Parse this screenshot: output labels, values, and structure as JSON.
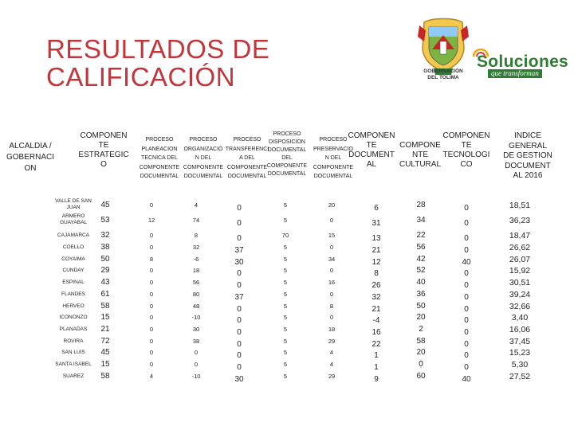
{
  "title_line1": "RESULTADOS DE",
  "title_line2": "CALIFICACIÓN",
  "logos": {
    "seal_caption_line1": "GOBERNACIÓN",
    "seal_caption_line2": "DEL TOLIMA",
    "brand_name": "Soluciones",
    "brand_tagline": "que transforman",
    "brand_color": "#2e7d32"
  },
  "headers": [
    {
      "lines": [
        "ALCALDIA /",
        "GOBERNACI",
        "ON"
      ]
    },
    {
      "lines": [
        "COMPONEN",
        "TE",
        "ESTRATEGIC",
        "O"
      ]
    },
    {
      "lines": [
        "PROCESO",
        "PLANEACION",
        "TECNICA DEL",
        "COMPONENTE",
        "DOCUMENTAL"
      ]
    },
    {
      "lines": [
        "PROCESO",
        "ORGANIZACIÓ",
        "N DEL",
        "COMPONENTE",
        "DOCUMENTAL"
      ]
    },
    {
      "lines": [
        "PROCESO",
        "TRANSFERENCI",
        "A DEL",
        "COMPONENTE",
        "DOCUMENTAL"
      ]
    },
    {
      "lines": [
        "PROCESO",
        "DISPOSICION",
        "DOCUMENTAL",
        "DEL",
        "COMPONENTE",
        "DOCUMENTAL"
      ]
    },
    {
      "lines": [
        "PROCESO",
        "PRESERVACIO",
        "N DEL",
        "COMPONENTE",
        "DOCUMENTAL"
      ]
    },
    {
      "lines": [
        "COMPONEN",
        "TE",
        "DOCUMENT",
        "AL"
      ]
    },
    {
      "lines": [
        "COMPONE",
        "NTE",
        "CULTURAL"
      ]
    },
    {
      "lines": [
        "COMPONEN",
        "TE",
        "TECNOLOGI",
        "CO"
      ]
    },
    {
      "lines": [
        "INDICE",
        "GENERAL",
        "DE GESTION",
        "DOCUMENT",
        "AL 2016"
      ]
    }
  ],
  "rows": [
    {
      "name": [
        "VALLE DE SAN",
        "JUAN"
      ],
      "values": [
        "45",
        "0",
        "4",
        "0",
        "5",
        "20",
        "6",
        "28",
        "0",
        "18,51"
      ]
    },
    {
      "name": [
        "ARMERO",
        "GUAYABAL"
      ],
      "values": [
        "53",
        "12",
        "74",
        "0",
        "5",
        "0",
        "31",
        "34",
        "0",
        "36,23"
      ]
    },
    {
      "name": [
        "CAJAMARCA"
      ],
      "values": [
        "32",
        "0",
        "8",
        "0",
        "70",
        "15",
        "13",
        "22",
        "0",
        "18,47"
      ]
    },
    {
      "name": [
        "COELLO"
      ],
      "values": [
        "38",
        "0",
        "32",
        "37",
        "5",
        "0",
        "21",
        "56",
        "0",
        "26,62"
      ]
    },
    {
      "name": [
        "COYAIMA"
      ],
      "values": [
        "50",
        "8",
        "-6",
        "30",
        "5",
        "34",
        "12",
        "42",
        "40",
        "26,07"
      ]
    },
    {
      "name": [
        "CUNDAY"
      ],
      "values": [
        "29",
        "0",
        "18",
        "0",
        "5",
        "0",
        "8",
        "52",
        "0",
        "15,92"
      ]
    },
    {
      "name": [
        "ESPINAL"
      ],
      "values": [
        "43",
        "0",
        "56",
        "0",
        "5",
        "16",
        "26",
        "40",
        "0",
        "30,51"
      ]
    },
    {
      "name": [
        "FLANDES"
      ],
      "values": [
        "61",
        "0",
        "80",
        "37",
        "5",
        "0",
        "32",
        "36",
        "0",
        "39,24"
      ]
    },
    {
      "name": [
        "HERVEO"
      ],
      "values": [
        "58",
        "0",
        "48",
        "0",
        "5",
        "8",
        "21",
        "50",
        "0",
        "32,66"
      ]
    },
    {
      "name": [
        "ICONONZO"
      ],
      "values": [
        "15",
        "0",
        "-10",
        "0",
        "5",
        "0",
        "-4",
        "20",
        "0",
        "3,40"
      ]
    },
    {
      "name": [
        "PLANADAS"
      ],
      "values": [
        "21",
        "0",
        "30",
        "0",
        "5",
        "18",
        "16",
        "2",
        "0",
        "16,06"
      ]
    },
    {
      "name": [
        "ROVIRA"
      ],
      "values": [
        "72",
        "0",
        "38",
        "0",
        "5",
        "29",
        "22",
        "58",
        "0",
        "37,45"
      ]
    },
    {
      "name": [
        "SAN LUIS"
      ],
      "values": [
        "45",
        "0",
        "0",
        "0",
        "5",
        "4",
        "1",
        "20",
        "0",
        "15,23"
      ]
    },
    {
      "name": [
        "SANTA ISABEL"
      ],
      "values": [
        "15",
        "0",
        "0",
        "0",
        "5",
        "4",
        "1",
        "0",
        "0",
        "5,30"
      ]
    },
    {
      "name": [
        "SUAREZ"
      ],
      "values": [
        "58",
        "4",
        "-10",
        "30",
        "5",
        "29",
        "9",
        "60",
        "40",
        "27,52"
      ]
    }
  ]
}
